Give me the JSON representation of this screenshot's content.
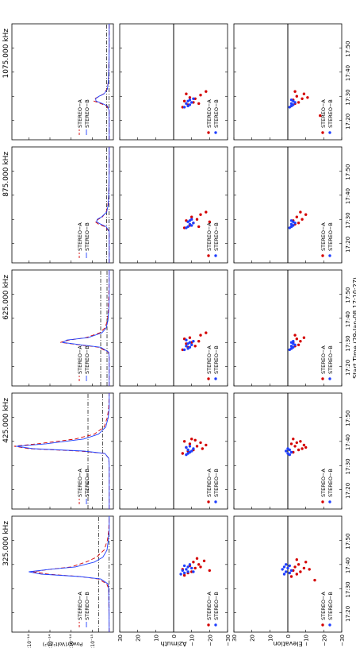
{
  "figure": {
    "ylabels": {
      "power": "Power(Volt²/m²)",
      "azimuth": "Azimuth",
      "elevation": "Elevation"
    },
    "xlabel": "Start Time (29-Jan-08 17:10:27)",
    "xtick_labels": [
      "17:20",
      "17:30",
      "17:40",
      "17:50"
    ],
    "power_ytick_labels": [
      "5.0×10⁻¹⁵",
      "1.0×10⁻¹⁴",
      "1.5×10⁻¹⁴",
      "2.0×10⁻¹⁴"
    ],
    "angle_ytick_labels": [
      "30",
      "20",
      "10",
      "0",
      "−10",
      "−20",
      "−30"
    ],
    "legend": [
      "STEREO−A",
      "STEREO−B"
    ],
    "colors": {
      "stereo_a": "#d40000",
      "stereo_b": "#1f3fff",
      "axes": "#000000"
    }
  },
  "chart_data": [
    {
      "type": "line",
      "panel": "power",
      "frequency": "325.000 kHz",
      "x_unit": "minutes after 17:10:27",
      "xlim": [
        2,
        50
      ],
      "ylim": [
        0,
        2.4e-14
      ],
      "threshold_levels": [
        3.5e-15,
        1e-15
      ],
      "series": [
        {
          "name": "STEREO-A",
          "style": "dashed",
          "x": [
            2,
            20,
            22,
            24,
            25,
            26,
            27,
            28,
            29,
            31,
            33,
            36,
            40,
            44,
            50
          ],
          "y": [
            1e-15,
            1.1e-15,
            1.6e-15,
            3.5e-15,
            8e-15,
            1.55e-14,
            1.9e-14,
            1.5e-14,
            1e-14,
            6.5e-15,
            4e-15,
            2.2e-15,
            1.4e-15,
            1.1e-15,
            1e-15
          ]
        },
        {
          "name": "STEREO-B",
          "style": "solid",
          "x": [
            2,
            20,
            22,
            24,
            25,
            26,
            27,
            28,
            29,
            31,
            33,
            36,
            40,
            44,
            50
          ],
          "y": [
            1e-15,
            1.1e-15,
            1.3e-15,
            3e-15,
            8e-15,
            1.7e-14,
            2e-14,
            1.5e-14,
            9e-15,
            4.5e-15,
            2.5e-15,
            1.5e-15,
            1.2e-15,
            1e-15,
            1e-15
          ]
        }
      ]
    },
    {
      "type": "line",
      "panel": "power",
      "frequency": "425.000 kHz",
      "x_unit": "minutes after 17:10:27",
      "xlim": [
        2,
        50
      ],
      "ylim": [
        0,
        2.4e-14
      ],
      "threshold_levels": [
        6e-15,
        2.5e-15
      ],
      "series": [
        {
          "name": "STEREO-A",
          "style": "dashed",
          "x": [
            2,
            20,
            23,
            25,
            26,
            27,
            28,
            29,
            31,
            33,
            36,
            40,
            44,
            50
          ],
          "y": [
            1e-15,
            1e-15,
            1.1e-15,
            2e-15,
            8e-15,
            2e-14,
            2.35e-14,
            1.8e-14,
            9e-15,
            4.5e-15,
            2.2e-15,
            1.4e-15,
            1.1e-15,
            1e-15
          ]
        },
        {
          "name": "STEREO-B",
          "style": "solid",
          "x": [
            2,
            20,
            23,
            25,
            26,
            27,
            28,
            29,
            31,
            33,
            36,
            40,
            44,
            50
          ],
          "y": [
            1e-15,
            1e-15,
            1.1e-15,
            2e-15,
            7e-15,
            1.9e-14,
            2.3e-14,
            1.6e-14,
            7e-15,
            3.5e-15,
            1.8e-15,
            1.2e-15,
            1e-15,
            1e-15
          ]
        }
      ]
    },
    {
      "type": "line",
      "panel": "power",
      "frequency": "625.000 kHz",
      "x_unit": "minutes after 17:10:27",
      "xlim": [
        2,
        50
      ],
      "ylim": [
        0,
        2.4e-14
      ],
      "threshold_levels": [
        3e-15,
        1.5e-15
      ],
      "series": [
        {
          "name": "STEREO-A",
          "style": "dashed",
          "x": [
            2,
            14,
            16,
            18,
            19,
            20,
            21,
            22,
            24,
            26,
            29,
            33,
            38,
            50
          ],
          "y": [
            1e-15,
            1e-15,
            1.2e-15,
            3.5e-15,
            8e-15,
            1.25e-14,
            1.05e-14,
            6.5e-15,
            3.2e-15,
            2e-15,
            1.4e-15,
            1.2e-15,
            1.1e-15,
            1e-15
          ]
        },
        {
          "name": "STEREO-B",
          "style": "solid",
          "x": [
            2,
            14,
            16,
            18,
            19,
            20,
            21,
            22,
            24,
            26,
            29,
            33,
            38,
            50
          ],
          "y": [
            1e-15,
            1e-15,
            1.1e-15,
            3e-15,
            7.5e-15,
            1.2e-14,
            1.1e-14,
            6e-15,
            2.7e-15,
            1.7e-15,
            1.3e-15,
            1.1e-15,
            1e-15,
            1e-15
          ]
        }
      ]
    },
    {
      "type": "line",
      "panel": "power",
      "frequency": "875.000 kHz",
      "x_unit": "minutes after 17:10:27",
      "xlim": [
        2,
        50
      ],
      "ylim": [
        0,
        2.4e-14
      ],
      "threshold_levels": [
        1.6e-15,
        1e-15
      ],
      "series": [
        {
          "name": "STEREO-A",
          "style": "dashed",
          "x": [
            2,
            15,
            17,
            18,
            19,
            20,
            21,
            23,
            26,
            30,
            40,
            50
          ],
          "y": [
            1e-15,
            1e-15,
            2e-15,
            3.5e-15,
            4.3e-15,
            3.6e-15,
            2.6e-15,
            1.7e-15,
            1.3e-15,
            1.1e-15,
            1e-15,
            1e-15
          ]
        },
        {
          "name": "STEREO-B",
          "style": "solid",
          "x": [
            2,
            15,
            17,
            18,
            19,
            20,
            21,
            23,
            26,
            30,
            40,
            50
          ],
          "y": [
            1e-15,
            1e-15,
            1.7e-15,
            3e-15,
            4e-15,
            3.8e-15,
            2.8e-15,
            1.6e-15,
            1.2e-15,
            1.1e-15,
            1e-15,
            1e-15
          ]
        }
      ]
    },
    {
      "type": "line",
      "panel": "power",
      "frequency": "1075.000 kHz",
      "x_unit": "minutes after 17:10:27",
      "xlim": [
        2,
        50
      ],
      "ylim": [
        0,
        2.4e-14
      ],
      "threshold_levels": [
        1.6e-15,
        1e-15
      ],
      "series": [
        {
          "name": "STEREO-A",
          "style": "dashed",
          "x": [
            2,
            14,
            16,
            17,
            18,
            19,
            20,
            21,
            23,
            26,
            30,
            40,
            50
          ],
          "y": [
            1e-15,
            1e-15,
            1.6e-15,
            3e-15,
            4.6e-15,
            4.4e-15,
            3.3e-15,
            2.3e-15,
            1.5e-15,
            1.2e-15,
            1.1e-15,
            1e-15,
            1e-15
          ]
        },
        {
          "name": "STEREO-B",
          "style": "solid",
          "x": [
            2,
            14,
            16,
            17,
            18,
            19,
            20,
            21,
            23,
            26,
            30,
            40,
            50
          ],
          "y": [
            1e-15,
            1e-15,
            1.4e-15,
            2.6e-15,
            4.1e-15,
            4.2e-15,
            3.4e-15,
            2.2e-15,
            1.4e-15,
            1.2e-15,
            1.1e-15,
            1e-15,
            1e-15
          ]
        }
      ]
    },
    {
      "type": "scatter",
      "panel": "azimuth",
      "frequency": "325.000 kHz",
      "xlim": [
        2,
        50
      ],
      "ylim": [
        -30,
        30
      ],
      "series": [
        {
          "name": "STEREO-A",
          "x": [
            25.5,
            26.5,
            27,
            28,
            28.5,
            29.5,
            30,
            31,
            31.5,
            32.5,
            29,
            27.5
          ],
          "y": [
            -6,
            -8,
            -10,
            -5,
            -12,
            -9,
            -14,
            -11,
            -17,
            -13,
            -15,
            -20
          ]
        },
        {
          "name": "STEREO-B",
          "x": [
            26,
            26.5,
            27,
            27.5,
            28,
            28.5,
            29,
            29.5,
            30,
            27
          ],
          "y": [
            -4,
            -6,
            -8,
            -5,
            -7,
            -10,
            -8,
            -6,
            -9,
            -11
          ]
        }
      ]
    },
    {
      "type": "scatter",
      "panel": "azimuth",
      "frequency": "425.000 kHz",
      "xlim": [
        2,
        50
      ],
      "ylim": [
        -30,
        30
      ],
      "series": [
        {
          "name": "STEREO-A",
          "x": [
            25,
            26,
            26.5,
            27.5,
            28,
            29,
            29.5,
            30.5,
            31,
            27,
            28.5,
            30
          ],
          "y": [
            -5,
            -8,
            -11,
            -7,
            -13,
            -9,
            -15,
            -12,
            -10,
            -16,
            -18,
            -6
          ]
        },
        {
          "name": "STEREO-B",
          "x": [
            24.5,
            25,
            25.5,
            26,
            26.5,
            27,
            27.5,
            28
          ],
          "y": [
            -7,
            -8,
            -9,
            -10,
            -8,
            -11,
            -7,
            -9
          ]
        }
      ]
    },
    {
      "type": "scatter",
      "panel": "azimuth",
      "frequency": "625.000 kHz",
      "xlim": [
        2,
        50
      ],
      "ylim": [
        -30,
        30
      ],
      "series": [
        {
          "name": "STEREO-A",
          "x": [
            17,
            18,
            18.5,
            19.5,
            20,
            20.5,
            21.5,
            22,
            23,
            24
          ],
          "y": [
            -5,
            -8,
            -12,
            -7,
            -10,
            -14,
            -6,
            -9,
            -15,
            -18
          ]
        },
        {
          "name": "STEREO-B",
          "x": [
            17,
            17.5,
            18,
            18.5,
            19,
            19.5,
            20,
            20.5,
            21
          ],
          "y": [
            -6,
            -8,
            -9,
            -7,
            -10,
            -8,
            -9,
            -11,
            -7
          ]
        }
      ]
    },
    {
      "type": "scatter",
      "panel": "azimuth",
      "frequency": "875.000 kHz",
      "xlim": [
        2,
        50
      ],
      "ylim": [
        -30,
        30
      ],
      "series": [
        {
          "name": "STEREO-A",
          "x": [
            16.5,
            17.5,
            18.5,
            19.5,
            20,
            21,
            22,
            23,
            17,
            19
          ],
          "y": [
            -6,
            -9,
            -11,
            -7,
            -13,
            -10,
            -15,
            -18,
            -14,
            -20
          ]
        },
        {
          "name": "STEREO-B",
          "x": [
            16.5,
            17,
            17.5,
            18,
            18.5,
            19,
            19.5,
            20
          ],
          "y": [
            -7,
            -8,
            -10,
            -9,
            -11,
            -8,
            -9,
            -10
          ]
        }
      ]
    },
    {
      "type": "scatter",
      "panel": "azimuth",
      "frequency": "1075.000 kHz",
      "xlim": [
        2,
        50
      ],
      "ylim": [
        -30,
        30
      ],
      "series": [
        {
          "name": "STEREO-A",
          "x": [
            15.5,
            16.5,
            17.5,
            18,
            19,
            19.5,
            20.5,
            22,
            17,
            21
          ],
          "y": [
            -5,
            -8,
            -11,
            -6,
            -12,
            -9,
            -15,
            -18,
            -14,
            -7
          ]
        },
        {
          "name": "STEREO-B",
          "x": [
            15.5,
            16,
            16.5,
            17,
            17.5,
            18,
            18.5,
            19
          ],
          "y": [
            -6,
            -8,
            -9,
            -7,
            -10,
            -8,
            -9,
            -11
          ]
        }
      ]
    },
    {
      "type": "scatter",
      "panel": "elevation",
      "frequency": "325.000 kHz",
      "xlim": [
        2,
        50
      ],
      "ylim": [
        -30,
        30
      ],
      "series": [
        {
          "name": "STEREO-A",
          "x": [
            25,
            26,
            27,
            27.5,
            28.5,
            29,
            30,
            31,
            32,
            23.5,
            28
          ],
          "y": [
            -2,
            -5,
            -7,
            -3,
            -9,
            -4,
            -6,
            -10,
            -5,
            -15,
            -12
          ]
        },
        {
          "name": "STEREO-B",
          "x": [
            26,
            26.5,
            27,
            27.5,
            28,
            28.5,
            29,
            29.5,
            30
          ],
          "y": [
            2,
            -1,
            1,
            -2,
            3,
            0,
            2,
            -1,
            1
          ]
        }
      ]
    },
    {
      "type": "scatter",
      "panel": "elevation",
      "frequency": "425.000 kHz",
      "xlim": [
        2,
        50
      ],
      "ylim": [
        -30,
        30
      ],
      "series": [
        {
          "name": "STEREO-A",
          "x": [
            25.5,
            26.5,
            27,
            28,
            28.5,
            29.5,
            30,
            31,
            27.5,
            29
          ],
          "y": [
            -3,
            -6,
            -8,
            -4,
            -9,
            -5,
            -7,
            -3,
            -10,
            -2
          ]
        },
        {
          "name": "STEREO-B",
          "x": [
            24.5,
            25,
            25.5,
            26,
            26.5,
            27
          ],
          "y": [
            -1,
            0,
            -2,
            1,
            -1,
            0
          ]
        }
      ]
    },
    {
      "type": "scatter",
      "panel": "elevation",
      "frequency": "625.000 kHz",
      "xlim": [
        2,
        50
      ],
      "ylim": [
        -30,
        30
      ],
      "series": [
        {
          "name": "STEREO-A",
          "x": [
            17.5,
            18.5,
            19,
            20,
            20.5,
            21.5,
            22,
            23
          ],
          "y": [
            -2,
            -4,
            -6,
            -3,
            -7,
            -5,
            -9,
            -4
          ]
        },
        {
          "name": "STEREO-B",
          "x": [
            17,
            17.5,
            18,
            18.5,
            19,
            19.5,
            20,
            20.5
          ],
          "y": [
            -1,
            -2,
            -3,
            -2,
            -4,
            -3,
            -2,
            -3
          ]
        }
      ]
    },
    {
      "type": "scatter",
      "panel": "elevation",
      "frequency": "875.000 kHz",
      "xlim": [
        2,
        50
      ],
      "ylim": [
        -30,
        30
      ],
      "series": [
        {
          "name": "STEREO-A",
          "x": [
            17,
            18,
            18.5,
            19.5,
            20,
            21,
            22,
            23
          ],
          "y": [
            -2,
            -4,
            -6,
            -3,
            -8,
            -5,
            -10,
            -7
          ]
        },
        {
          "name": "STEREO-B",
          "x": [
            16.5,
            17,
            17.5,
            18,
            18.5,
            19,
            19.5
          ],
          "y": [
            -1,
            -2,
            -3,
            -2,
            -4,
            -3,
            -2
          ]
        }
      ]
    },
    {
      "type": "scatter",
      "panel": "elevation",
      "frequency": "1075.000 kHz",
      "xlim": [
        2,
        50
      ],
      "ylim": [
        -30,
        30
      ],
      "series": [
        {
          "name": "STEREO-A",
          "x": [
            16,
            17,
            17.5,
            18.5,
            19,
            20,
            21,
            22,
            19.5,
            12
          ],
          "y": [
            -2,
            -4,
            -6,
            -3,
            -8,
            -5,
            -9,
            -4,
            -11,
            -18
          ]
        },
        {
          "name": "STEREO-B",
          "x": [
            15.5,
            16,
            16.5,
            17,
            17.5,
            18,
            18.5
          ],
          "y": [
            -1,
            -2,
            -3,
            -2,
            -4,
            -3,
            -2
          ]
        }
      ]
    }
  ]
}
